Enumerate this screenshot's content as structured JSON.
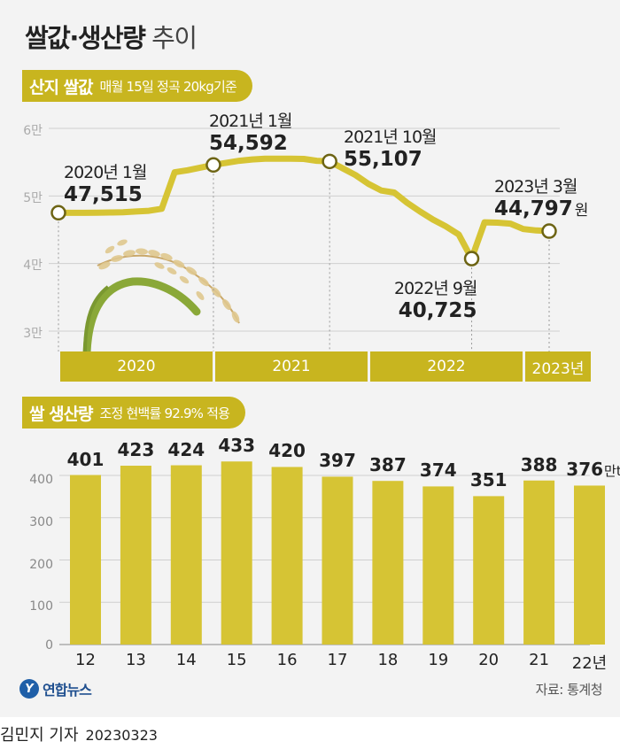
{
  "title_bold": "쌀값·생산량",
  "title_light": "추이",
  "price_section": {
    "header": "산지 쌀값",
    "subheader": "매월 15일 정곡 20kg기준",
    "y_ticks": [
      "6만",
      "5만",
      "4만",
      "3만"
    ],
    "years": [
      "2020",
      "2021",
      "2022",
      "2023년"
    ],
    "annotations": [
      {
        "date": "2020년 1월",
        "value": "47,515",
        "unit": ""
      },
      {
        "date": "2021년 1월",
        "value": "54,592",
        "unit": ""
      },
      {
        "date": "2021년 10월",
        "value": "55,107",
        "unit": ""
      },
      {
        "date": "2022년 9월",
        "value": "40,725",
        "unit": ""
      },
      {
        "date": "2023년 3월",
        "value": "44,797",
        "unit": "원"
      }
    ]
  },
  "production_section": {
    "header": "쌀 생산량",
    "subheader": "조정 현백률 92.9% 적용",
    "unit": "만t"
  },
  "chart_data": [
    {
      "type": "line",
      "title": "산지 쌀값",
      "ylabel": "원 (20kg)",
      "ylim": [
        30000,
        60000
      ],
      "grid": true,
      "series": [
        {
          "name": "산지 쌀값",
          "x": [
            "2020-01",
            "2020-02",
            "2020-03",
            "2020-04",
            "2020-05",
            "2020-06",
            "2020-07",
            "2020-08",
            "2020-09",
            "2020-10",
            "2020-11",
            "2020-12",
            "2021-01",
            "2021-02",
            "2021-03",
            "2021-04",
            "2021-05",
            "2021-06",
            "2021-07",
            "2021-08",
            "2021-09",
            "2021-10",
            "2021-11",
            "2021-12",
            "2022-01",
            "2022-02",
            "2022-03",
            "2022-04",
            "2022-05",
            "2022-06",
            "2022-07",
            "2022-08",
            "2022-09",
            "2022-10",
            "2022-11",
            "2022-12",
            "2023-01",
            "2023-02",
            "2023-03"
          ],
          "values": [
            47515,
            47500,
            47500,
            47520,
            47550,
            47580,
            47700,
            47800,
            48100,
            53500,
            53800,
            54200,
            54592,
            54900,
            55200,
            55400,
            55500,
            55500,
            55500,
            55480,
            55200,
            55107,
            54100,
            53100,
            51800,
            50800,
            50500,
            49000,
            47700,
            46500,
            45500,
            44300,
            40725,
            46100,
            46050,
            45900,
            45100,
            44900,
            44797
          ]
        }
      ],
      "highlights": [
        {
          "x": "2020-01",
          "value": 47515
        },
        {
          "x": "2021-01",
          "value": 54592
        },
        {
          "x": "2021-10",
          "value": 55107
        },
        {
          "x": "2022-09",
          "value": 40725
        },
        {
          "x": "2023-03",
          "value": 44797
        }
      ]
    },
    {
      "type": "bar",
      "title": "쌀 생산량",
      "ylabel": "만t",
      "ylim": [
        0,
        450
      ],
      "y_ticks": [
        "400",
        "300",
        "200",
        "100",
        "0"
      ],
      "grid": true,
      "categories": [
        "12",
        "13",
        "14",
        "15",
        "16",
        "17",
        "18",
        "19",
        "20",
        "21",
        "22년"
      ],
      "values": [
        401,
        423,
        424,
        433,
        420,
        397,
        387,
        374,
        351,
        388,
        376
      ]
    }
  ],
  "source": "자료: 통계청",
  "logo_text": "연합뉴스",
  "credit": "김민지 기자",
  "date": "20230323"
}
